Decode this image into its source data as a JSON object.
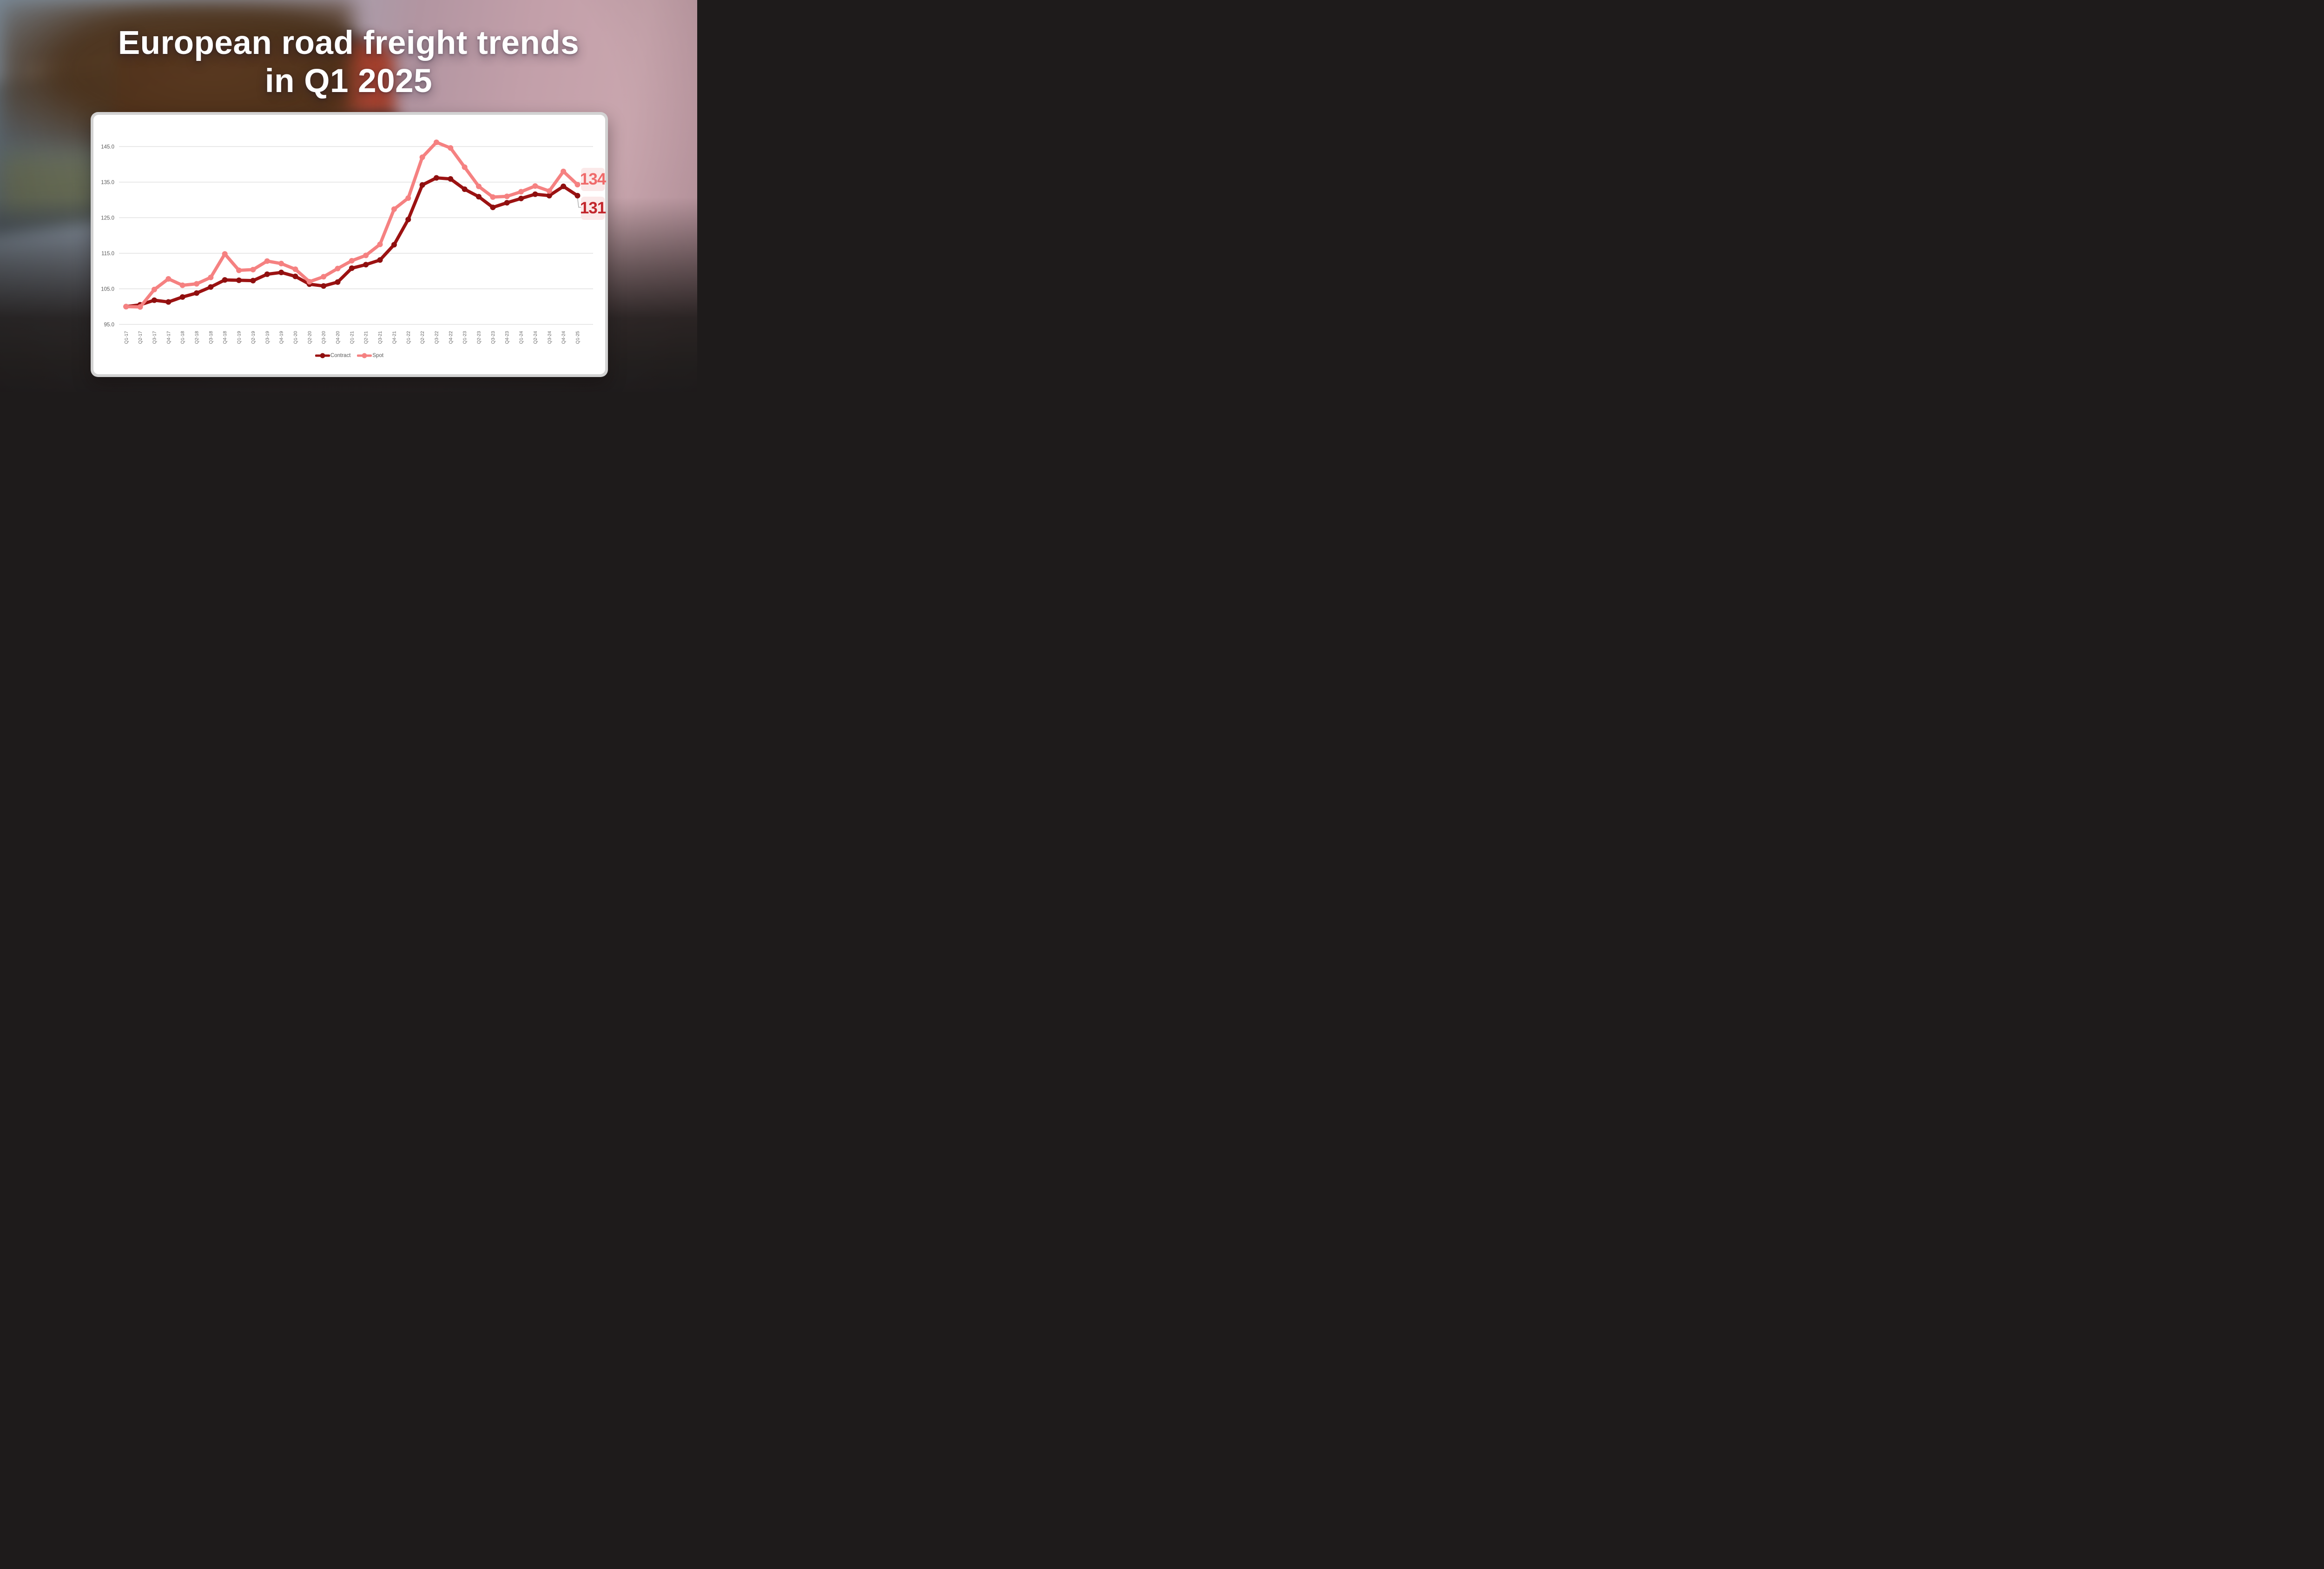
{
  "title": {
    "line1": "European road freight trends",
    "line2": "in Q1 2025"
  },
  "chart": {
    "end_labels": [
      {
        "text": "134",
        "series": "Spot",
        "color": "#EF6A6A",
        "background": "#FBE9E9"
      },
      {
        "text": "131",
        "series": "Contract",
        "color": "#C2262C",
        "background": "#FBE9E9"
      }
    ],
    "colors": {
      "contract_line": "#9C1212",
      "contract_dot": "#8E0F0F",
      "spot_line": "#F58181",
      "spot_dot": "#F58181",
      "gridline": "#DCDCDC",
      "y_tick_text": "#595959",
      "x_tick_text": "#666666",
      "legend_text": "#595959",
      "card_frame": "#D2D2D2",
      "card_background": "#FFFFFF",
      "connector": "#AFAFAF"
    }
  },
  "chart_data": {
    "type": "line",
    "title": "",
    "xlabel": "",
    "ylabel": "",
    "ylim": [
      95,
      145
    ],
    "ygrid": [
      145,
      135,
      125,
      115,
      105,
      95
    ],
    "y_tick_labels": [
      "145.0",
      "135.0",
      "125.0",
      "115.0",
      "105.0",
      "95.0"
    ],
    "grid": "horizontal-only",
    "legend_position": "bottom-center",
    "categories": [
      "Q1-17",
      "Q2-17",
      "Q3-17",
      "Q4-17",
      "Q1-18",
      "Q2-18",
      "Q3-18",
      "Q4-18",
      "Q1-19",
      "Q2-19",
      "Q3-19",
      "Q4-19",
      "Q1-20",
      "Q2-20",
      "Q3-20",
      "Q4-20",
      "Q1-21",
      "Q2-21",
      "Q3-21",
      "Q4-21",
      "Q1-22",
      "Q2-22",
      "Q3-22",
      "Q4-22",
      "Q1-23",
      "Q2-23",
      "Q3-23",
      "Q4-23",
      "Q1-24",
      "Q2-24",
      "Q3-24",
      "Q4-24",
      "Q1-25"
    ],
    "series": [
      {
        "name": "Contract",
        "color": "#9C1212",
        "values": [
          100.0,
          100.5,
          101.8,
          101.3,
          102.7,
          103.8,
          105.5,
          107.5,
          107.4,
          107.3,
          109.1,
          109.6,
          108.5,
          106.3,
          105.8,
          106.9,
          110.8,
          111.8,
          113.1,
          117.4,
          124.5,
          134.2,
          136.2,
          135.9,
          133.0,
          130.9,
          127.9,
          129.2,
          130.4,
          131.6,
          131.2,
          133.8,
          131.2
        ]
      },
      {
        "name": "Spot",
        "color": "#F58181",
        "values": [
          100.0,
          99.9,
          104.8,
          107.8,
          106.0,
          106.4,
          108.2,
          114.8,
          110.2,
          110.4,
          112.8,
          112.1,
          110.5,
          107.0,
          108.4,
          110.7,
          112.9,
          114.4,
          117.5,
          127.4,
          130.5,
          142.0,
          146.2,
          144.6,
          139.2,
          133.8,
          130.8,
          131.0,
          132.3,
          133.9,
          132.5,
          138.0,
          134.3
        ]
      }
    ]
  }
}
